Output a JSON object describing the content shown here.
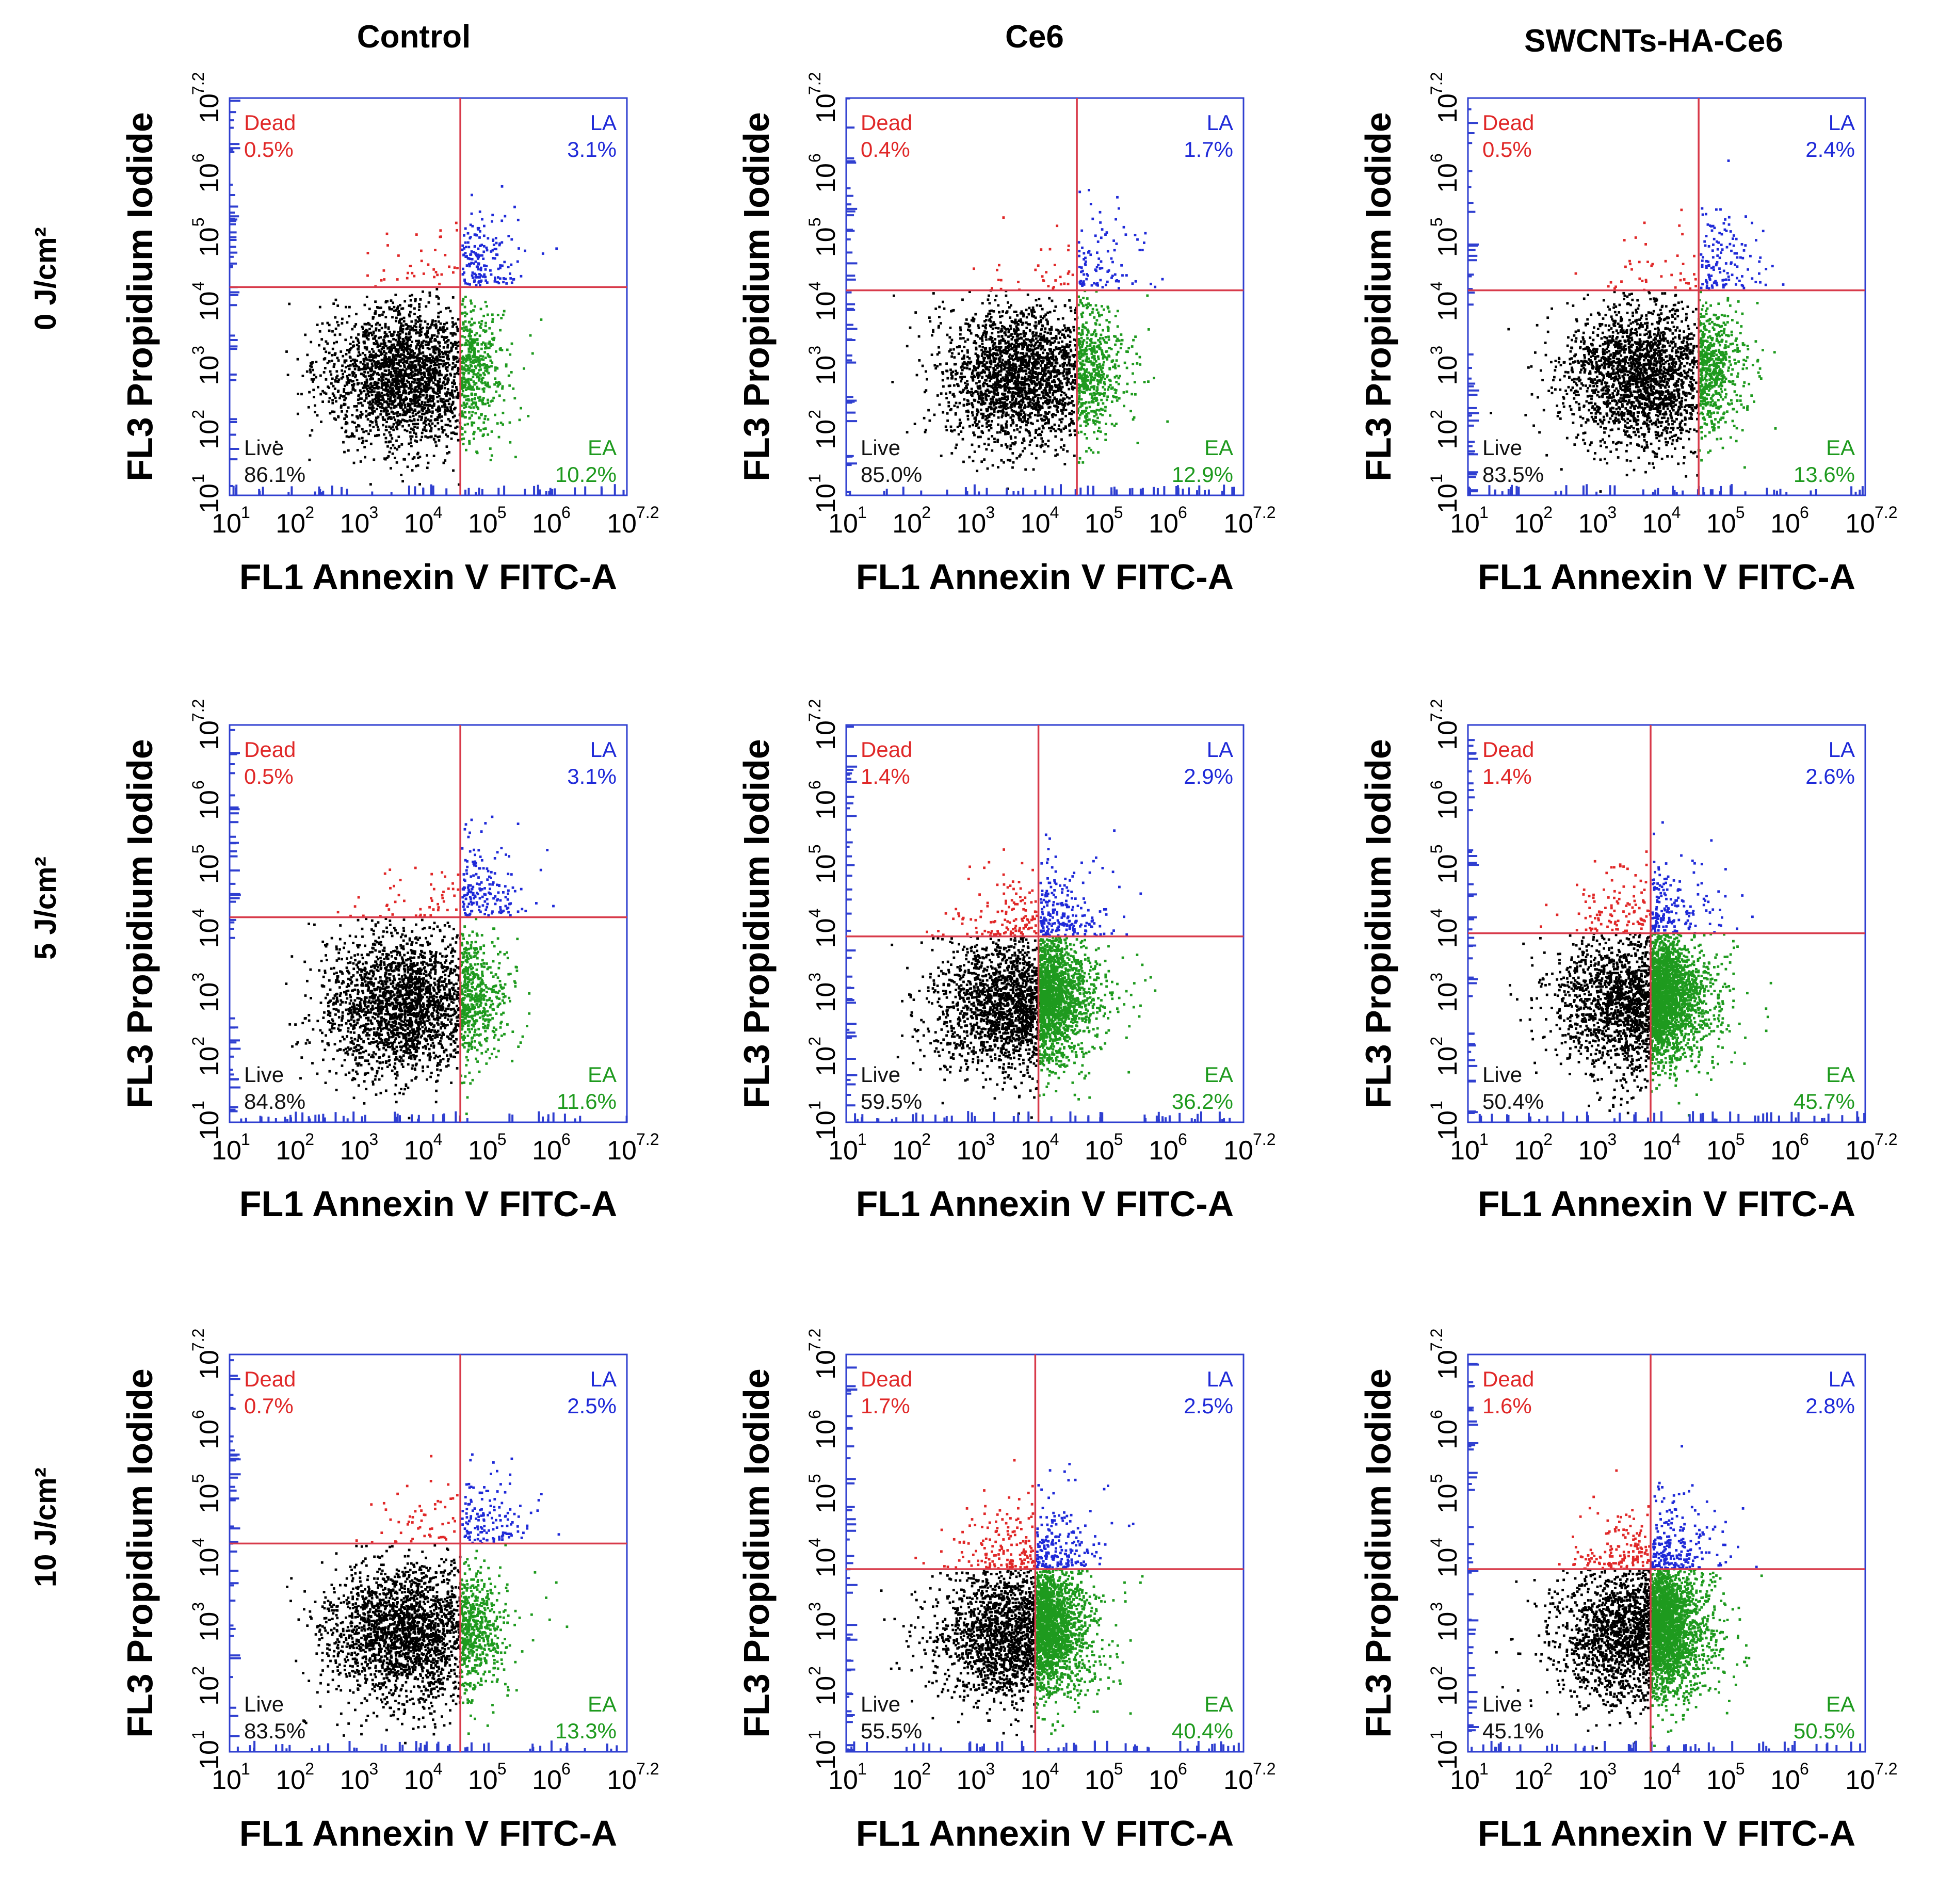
{
  "figure": {
    "columns": [
      "Control",
      "Ce6",
      "SWCNTs-HA-Ce6"
    ],
    "rows": [
      "0 J/cm²",
      "5 J/cm²",
      "10 J/cm²"
    ]
  },
  "colors": {
    "background": "#ffffff",
    "frame": "#2f3fd0",
    "gate": "#d83a4a",
    "live": "#000000",
    "dead": "#e02828",
    "late_apoptotic": "#1f2ad8",
    "early_apoptotic": "#1e9a1e"
  },
  "chart_data": [
    {
      "type": "scatter",
      "row_label": "0 J/cm²",
      "column_label": "Control",
      "xlabel": "FL1 Annexin V FITC-A",
      "ylabel": "FL3 Propidium Iodide",
      "x_scale": "log",
      "y_scale": "log",
      "xlim_log10": [
        1,
        7.2
      ],
      "ylim_log10": [
        1,
        7.2
      ],
      "x_ticks": [
        "10",
        "10",
        "10",
        "10",
        "10",
        "10"
      ],
      "x_tick_exps": [
        "1",
        "2",
        "3",
        "4",
        "5",
        "6"
      ],
      "x_tick_last": "10",
      "x_tick_last_exp": "7.2",
      "y_ticks": [
        "10",
        "10",
        "10",
        "10",
        "10",
        "10"
      ],
      "y_tick_exps": [
        "1",
        "2",
        "3",
        "4",
        "5",
        "6"
      ],
      "y_tick_last": "10",
      "y_tick_last_exp": "7.2",
      "gate_x_log10": 4.6,
      "gate_y_log10": 4.25,
      "quadrants": [
        {
          "name": "Dead",
          "value": "0.5%"
        },
        {
          "name": "LA",
          "value": "3.1%"
        },
        {
          "name": "Live",
          "value": "86.1%"
        },
        {
          "name": "EA",
          "value": "10.2%"
        }
      ]
    },
    {
      "type": "scatter",
      "row_label": "0 J/cm²",
      "column_label": "Ce6",
      "xlabel": "FL1 Annexin V FITC-A",
      "ylabel": "FL3 Propidium Iodide",
      "x_scale": "log",
      "y_scale": "log",
      "xlim_log10": [
        1,
        7.2
      ],
      "ylim_log10": [
        1,
        7.2
      ],
      "x_ticks": [
        "10",
        "10",
        "10",
        "10",
        "10",
        "10"
      ],
      "x_tick_exps": [
        "1",
        "2",
        "3",
        "4",
        "5",
        "6"
      ],
      "x_tick_last": "10",
      "x_tick_last_exp": "7.2",
      "y_ticks": [
        "10",
        "10",
        "10",
        "10",
        "10",
        "10"
      ],
      "y_tick_exps": [
        "1",
        "2",
        "3",
        "4",
        "5",
        "6"
      ],
      "y_tick_last": "10",
      "y_tick_last_exp": "7.2",
      "gate_x_log10": 4.6,
      "gate_y_log10": 4.2,
      "quadrants": [
        {
          "name": "Dead",
          "value": "0.4%"
        },
        {
          "name": "LA",
          "value": "1.7%"
        },
        {
          "name": "Live",
          "value": "85.0%"
        },
        {
          "name": "EA",
          "value": "12.9%"
        }
      ]
    },
    {
      "type": "scatter",
      "row_label": "0 J/cm²",
      "column_label": "SWCNTs-HA-Ce6",
      "xlabel": "FL1 Annexin V FITC-A",
      "ylabel": "FL3 Propidium Iodide",
      "x_scale": "log",
      "y_scale": "log",
      "xlim_log10": [
        1,
        7.2
      ],
      "ylim_log10": [
        1,
        7.2
      ],
      "x_ticks": [
        "10",
        "10",
        "10",
        "10",
        "10",
        "10"
      ],
      "x_tick_exps": [
        "1",
        "2",
        "3",
        "4",
        "5",
        "6"
      ],
      "x_tick_last": "10",
      "x_tick_last_exp": "7.2",
      "y_ticks": [
        "10",
        "10",
        "10",
        "10",
        "10",
        "10"
      ],
      "y_tick_exps": [
        "1",
        "2",
        "3",
        "4",
        "5",
        "6"
      ],
      "y_tick_last": "10",
      "y_tick_last_exp": "7.2",
      "gate_x_log10": 4.6,
      "gate_y_log10": 4.2,
      "quadrants": [
        {
          "name": "Dead",
          "value": "0.5%"
        },
        {
          "name": "LA",
          "value": "2.4%"
        },
        {
          "name": "Live",
          "value": "83.5%"
        },
        {
          "name": "EA",
          "value": "13.6%"
        }
      ]
    },
    {
      "type": "scatter",
      "row_label": "5 J/cm²",
      "column_label": "Control",
      "xlabel": "FL1 Annexin V FITC-A",
      "ylabel": "FL3 Propidium Iodide",
      "x_scale": "log",
      "y_scale": "log",
      "xlim_log10": [
        1,
        7.2
      ],
      "ylim_log10": [
        1,
        7.2
      ],
      "x_ticks": [
        "10",
        "10",
        "10",
        "10",
        "10",
        "10"
      ],
      "x_tick_exps": [
        "1",
        "2",
        "3",
        "4",
        "5",
        "6"
      ],
      "x_tick_last": "10",
      "x_tick_last_exp": "7.2",
      "y_ticks": [
        "10",
        "10",
        "10",
        "10",
        "10",
        "10"
      ],
      "y_tick_exps": [
        "1",
        "2",
        "3",
        "4",
        "5",
        "6"
      ],
      "y_tick_last": "10",
      "y_tick_last_exp": "7.2",
      "gate_x_log10": 4.6,
      "gate_y_log10": 4.2,
      "quadrants": [
        {
          "name": "Dead",
          "value": "0.5%"
        },
        {
          "name": "LA",
          "value": "3.1%"
        },
        {
          "name": "Live",
          "value": "84.8%"
        },
        {
          "name": "EA",
          "value": "11.6%"
        }
      ]
    },
    {
      "type": "scatter",
      "row_label": "5 J/cm²",
      "column_label": "Ce6",
      "xlabel": "FL1 Annexin V FITC-A",
      "ylabel": "FL3 Propidium Iodide",
      "x_scale": "log",
      "y_scale": "log",
      "xlim_log10": [
        1,
        7.2
      ],
      "ylim_log10": [
        1,
        7.2
      ],
      "x_ticks": [
        "10",
        "10",
        "10",
        "10",
        "10",
        "10"
      ],
      "x_tick_exps": [
        "1",
        "2",
        "3",
        "4",
        "5",
        "6"
      ],
      "x_tick_last": "10",
      "x_tick_last_exp": "7.2",
      "y_ticks": [
        "10",
        "10",
        "10",
        "10",
        "10",
        "10"
      ],
      "y_tick_exps": [
        "1",
        "2",
        "3",
        "4",
        "5",
        "6"
      ],
      "y_tick_last": "10",
      "y_tick_last_exp": "7.2",
      "gate_x_log10": 4.0,
      "gate_y_log10": 3.9,
      "quadrants": [
        {
          "name": "Dead",
          "value": "1.4%"
        },
        {
          "name": "LA",
          "value": "2.9%"
        },
        {
          "name": "Live",
          "value": "59.5%"
        },
        {
          "name": "EA",
          "value": "36.2%"
        }
      ]
    },
    {
      "type": "scatter",
      "row_label": "5 J/cm²",
      "column_label": "SWCNTs-HA-Ce6",
      "xlabel": "FL1 Annexin V FITC-A",
      "ylabel": "FL3 Propidium Iodide",
      "x_scale": "log",
      "y_scale": "log",
      "xlim_log10": [
        1,
        7.2
      ],
      "ylim_log10": [
        1,
        7.2
      ],
      "x_ticks": [
        "10",
        "10",
        "10",
        "10",
        "10",
        "10"
      ],
      "x_tick_exps": [
        "1",
        "2",
        "3",
        "4",
        "5",
        "6"
      ],
      "x_tick_last": "10",
      "x_tick_last_exp": "7.2",
      "y_ticks": [
        "10",
        "10",
        "10",
        "10",
        "10",
        "10"
      ],
      "y_tick_exps": [
        "1",
        "2",
        "3",
        "4",
        "5",
        "6"
      ],
      "y_tick_last": "10",
      "y_tick_last_exp": "7.2",
      "gate_x_log10": 3.85,
      "gate_y_log10": 3.95,
      "quadrants": [
        {
          "name": "Dead",
          "value": "1.4%"
        },
        {
          "name": "LA",
          "value": "2.6%"
        },
        {
          "name": "Live",
          "value": "50.4%"
        },
        {
          "name": "EA",
          "value": "45.7%"
        }
      ]
    },
    {
      "type": "scatter",
      "row_label": "10 J/cm²",
      "column_label": "Control",
      "xlabel": "FL1 Annexin V FITC-A",
      "ylabel": "FL3 Propidium Iodide",
      "x_scale": "log",
      "y_scale": "log",
      "xlim_log10": [
        1,
        7.2
      ],
      "ylim_log10": [
        1,
        7.2
      ],
      "x_ticks": [
        "10",
        "10",
        "10",
        "10",
        "10",
        "10"
      ],
      "x_tick_exps": [
        "1",
        "2",
        "3",
        "4",
        "5",
        "6"
      ],
      "x_tick_last": "10",
      "x_tick_last_exp": "7.2",
      "y_ticks": [
        "10",
        "10",
        "10",
        "10",
        "10",
        "10"
      ],
      "y_tick_exps": [
        "1",
        "2",
        "3",
        "4",
        "5",
        "6"
      ],
      "y_tick_last": "10",
      "y_tick_last_exp": "7.2",
      "gate_x_log10": 4.6,
      "gate_y_log10": 4.25,
      "quadrants": [
        {
          "name": "Dead",
          "value": "0.7%"
        },
        {
          "name": "LA",
          "value": "2.5%"
        },
        {
          "name": "Live",
          "value": "83.5%"
        },
        {
          "name": "EA",
          "value": "13.3%"
        }
      ]
    },
    {
      "type": "scatter",
      "row_label": "10 J/cm²",
      "column_label": "Ce6",
      "xlabel": "FL1 Annexin V FITC-A",
      "ylabel": "FL3 Propidium Iodide",
      "x_scale": "log",
      "y_scale": "log",
      "xlim_log10": [
        1,
        7.2
      ],
      "ylim_log10": [
        1,
        7.2
      ],
      "x_ticks": [
        "10",
        "10",
        "10",
        "10",
        "10",
        "10"
      ],
      "x_tick_exps": [
        "1",
        "2",
        "3",
        "4",
        "5",
        "6"
      ],
      "x_tick_last": "10",
      "x_tick_last_exp": "7.2",
      "y_ticks": [
        "10",
        "10",
        "10",
        "10",
        "10",
        "10"
      ],
      "y_tick_exps": [
        "1",
        "2",
        "3",
        "4",
        "5",
        "6"
      ],
      "y_tick_last": "10",
      "y_tick_last_exp": "7.2",
      "gate_x_log10": 3.95,
      "gate_y_log10": 3.85,
      "quadrants": [
        {
          "name": "Dead",
          "value": "1.7%"
        },
        {
          "name": "LA",
          "value": "2.5%"
        },
        {
          "name": "Live",
          "value": "55.5%"
        },
        {
          "name": "EA",
          "value": "40.4%"
        }
      ]
    },
    {
      "type": "scatter",
      "row_label": "10 J/cm²",
      "column_label": "SWCNTs-HA-Ce6",
      "xlabel": "FL1 Annexin V FITC-A",
      "ylabel": "FL3 Propidium Iodide",
      "x_scale": "log",
      "y_scale": "log",
      "xlim_log10": [
        1,
        7.2
      ],
      "ylim_log10": [
        1,
        7.2
      ],
      "x_ticks": [
        "10",
        "10",
        "10",
        "10",
        "10",
        "10"
      ],
      "x_tick_exps": [
        "1",
        "2",
        "3",
        "4",
        "5",
        "6"
      ],
      "x_tick_last": "10",
      "x_tick_last_exp": "7.2",
      "y_ticks": [
        "10",
        "10",
        "10",
        "10",
        "10",
        "10"
      ],
      "y_tick_exps": [
        "1",
        "2",
        "3",
        "4",
        "5",
        "6"
      ],
      "y_tick_last": "10",
      "y_tick_last_exp": "7.2",
      "gate_x_log10": 3.85,
      "gate_y_log10": 3.85,
      "quadrants": [
        {
          "name": "Dead",
          "value": "1.6%"
        },
        {
          "name": "LA",
          "value": "2.8%"
        },
        {
          "name": "Live",
          "value": "45.1%"
        },
        {
          "name": "EA",
          "value": "50.5%"
        }
      ]
    }
  ]
}
